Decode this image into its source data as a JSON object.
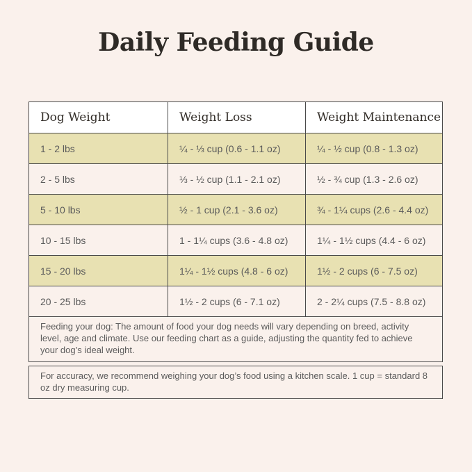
{
  "chart_data": {
    "type": "table",
    "title": "Daily Feeding Guide",
    "columns": [
      "Dog Weight",
      "Weight Loss",
      "Weight Maintenance"
    ],
    "rows": [
      [
        "1 - 2 lbs",
        "¼ - ⅓ cup (0.6 - 1.1 oz)",
        "¼ - ½ cup (0.8 - 1.3 oz)"
      ],
      [
        "2 - 5 lbs",
        "⅓ - ½ cup (1.1 - 2.1 oz)",
        "½ - ¾ cup (1.3 - 2.6 oz)"
      ],
      [
        "5 - 10 lbs",
        "½ - 1 cup (2.1 - 3.6 oz)",
        "¾ - 1¼ cups (2.6 - 4.4 oz)"
      ],
      [
        "10 - 15 lbs",
        "1 - 1¼ cups (3.6 - 4.8 oz)",
        "1¼ - 1½ cups (4.4 - 6 oz)"
      ],
      [
        "15 - 20 lbs",
        "1¼ - 1½ cups (4.8 - 6 oz)",
        "1½ - 2 cups (6 - 7.5 oz)"
      ],
      [
        "20 - 25 lbs",
        "1½ - 2 cups (6 - 7.1 oz)",
        "2 - 2¼ cups (7.5 - 8.8 oz)"
      ]
    ],
    "highlighted_row_indices": [
      0,
      2,
      4
    ],
    "notes": [
      "Feeding your dog: The amount of food your dog needs will vary depending on breed, activity level, age and climate. Use our feeding chart as a guide, adjusting the quantity fed to achieve your dog’s ideal weight.",
      "For accuracy, we recommend weighing your dog’s food using a kitchen scale. 1 cup = standard 8 oz dry measuring cup."
    ],
    "legend_position": "none",
    "grid": "full-borders"
  },
  "colors": {
    "page_background": "#FAF1EC",
    "header_background": "#FFFFFF",
    "row_highlight": "#E8E1B2",
    "border": "#4A4A4A",
    "title_text": "#2E2A26",
    "header_text": "#332E29",
    "body_text": "#5B5B5B"
  }
}
